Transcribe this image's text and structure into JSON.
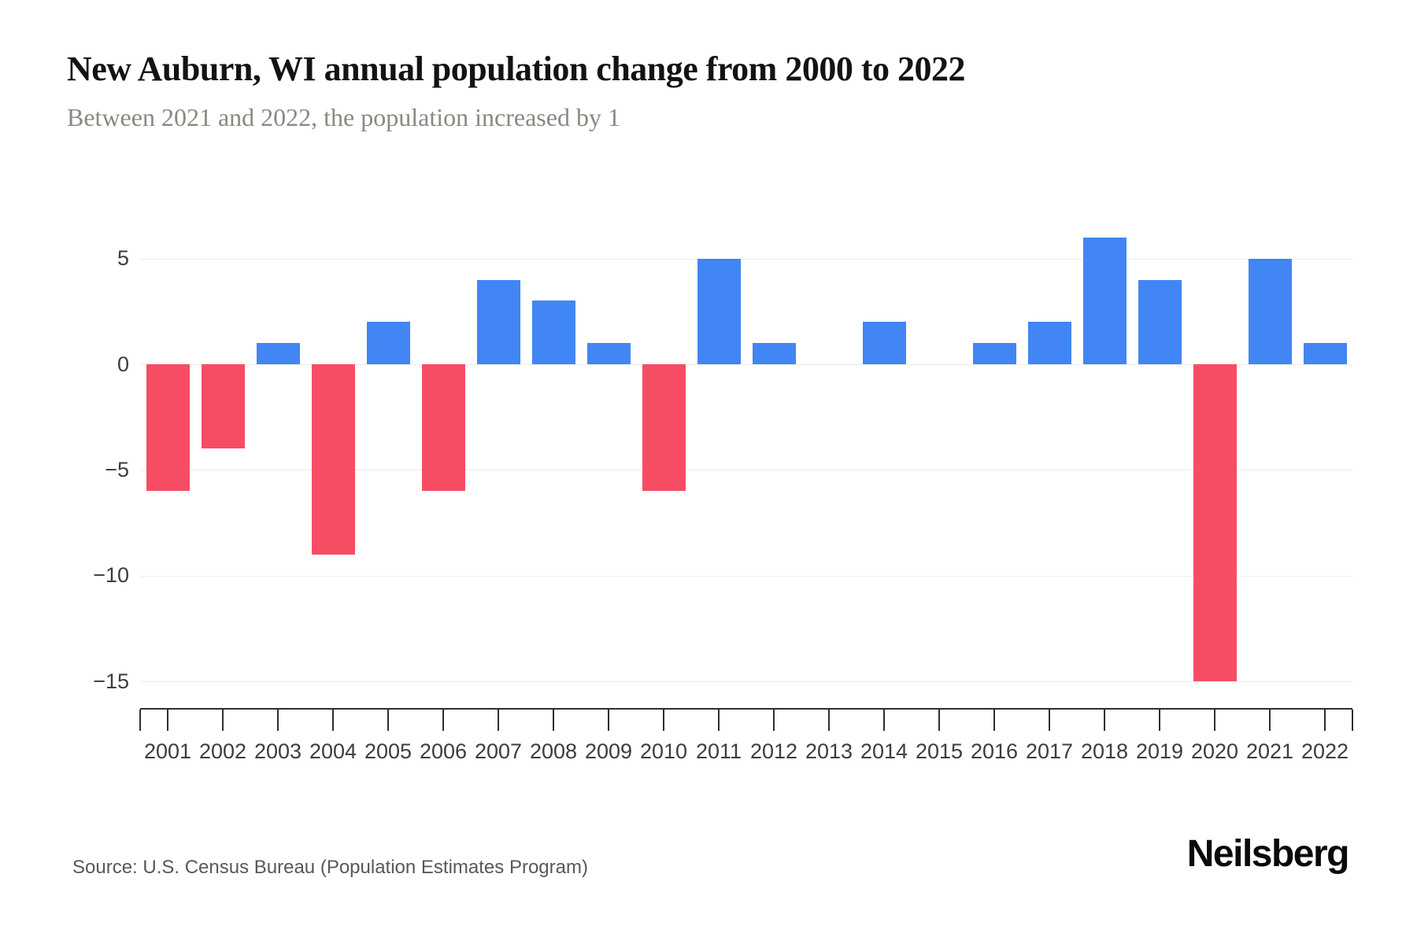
{
  "header": {
    "title": "New Auburn, WI annual population change from 2000 to 2022",
    "subtitle": "Between 2021 and 2022, the population increased by 1"
  },
  "chart_data": {
    "type": "bar",
    "title": "New Auburn, WI annual population change from 2000 to 2022",
    "xlabel": "",
    "ylabel": "",
    "categories": [
      "2001",
      "2002",
      "2003",
      "2004",
      "2005",
      "2006",
      "2007",
      "2008",
      "2009",
      "2010",
      "2011",
      "2012",
      "2013",
      "2014",
      "2015",
      "2016",
      "2017",
      "2018",
      "2019",
      "2020",
      "2021",
      "2022"
    ],
    "values": [
      -6,
      -4,
      1,
      -9,
      2,
      -6,
      4,
      3,
      1,
      -6,
      5,
      1,
      0,
      2,
      0,
      1,
      2,
      6,
      4,
      -15,
      5,
      1
    ],
    "yticks": [
      5,
      0,
      -5,
      -10,
      -15
    ],
    "ytick_labels": [
      "5",
      "0",
      "−5",
      "−10",
      "−15"
    ],
    "ylim": [
      -16.5,
      6.5
    ],
    "grid": "horizontal",
    "legend": "none",
    "colors": {
      "positive": "#4285F4",
      "negative": "#F64D64",
      "gridline": "#ECECEC",
      "axis": "#2F2F2F",
      "tick_label": "#3D3D3D"
    }
  },
  "footer": {
    "source": "Source: U.S. Census Bureau (Population Estimates Program)",
    "brand": "Neilsberg"
  }
}
